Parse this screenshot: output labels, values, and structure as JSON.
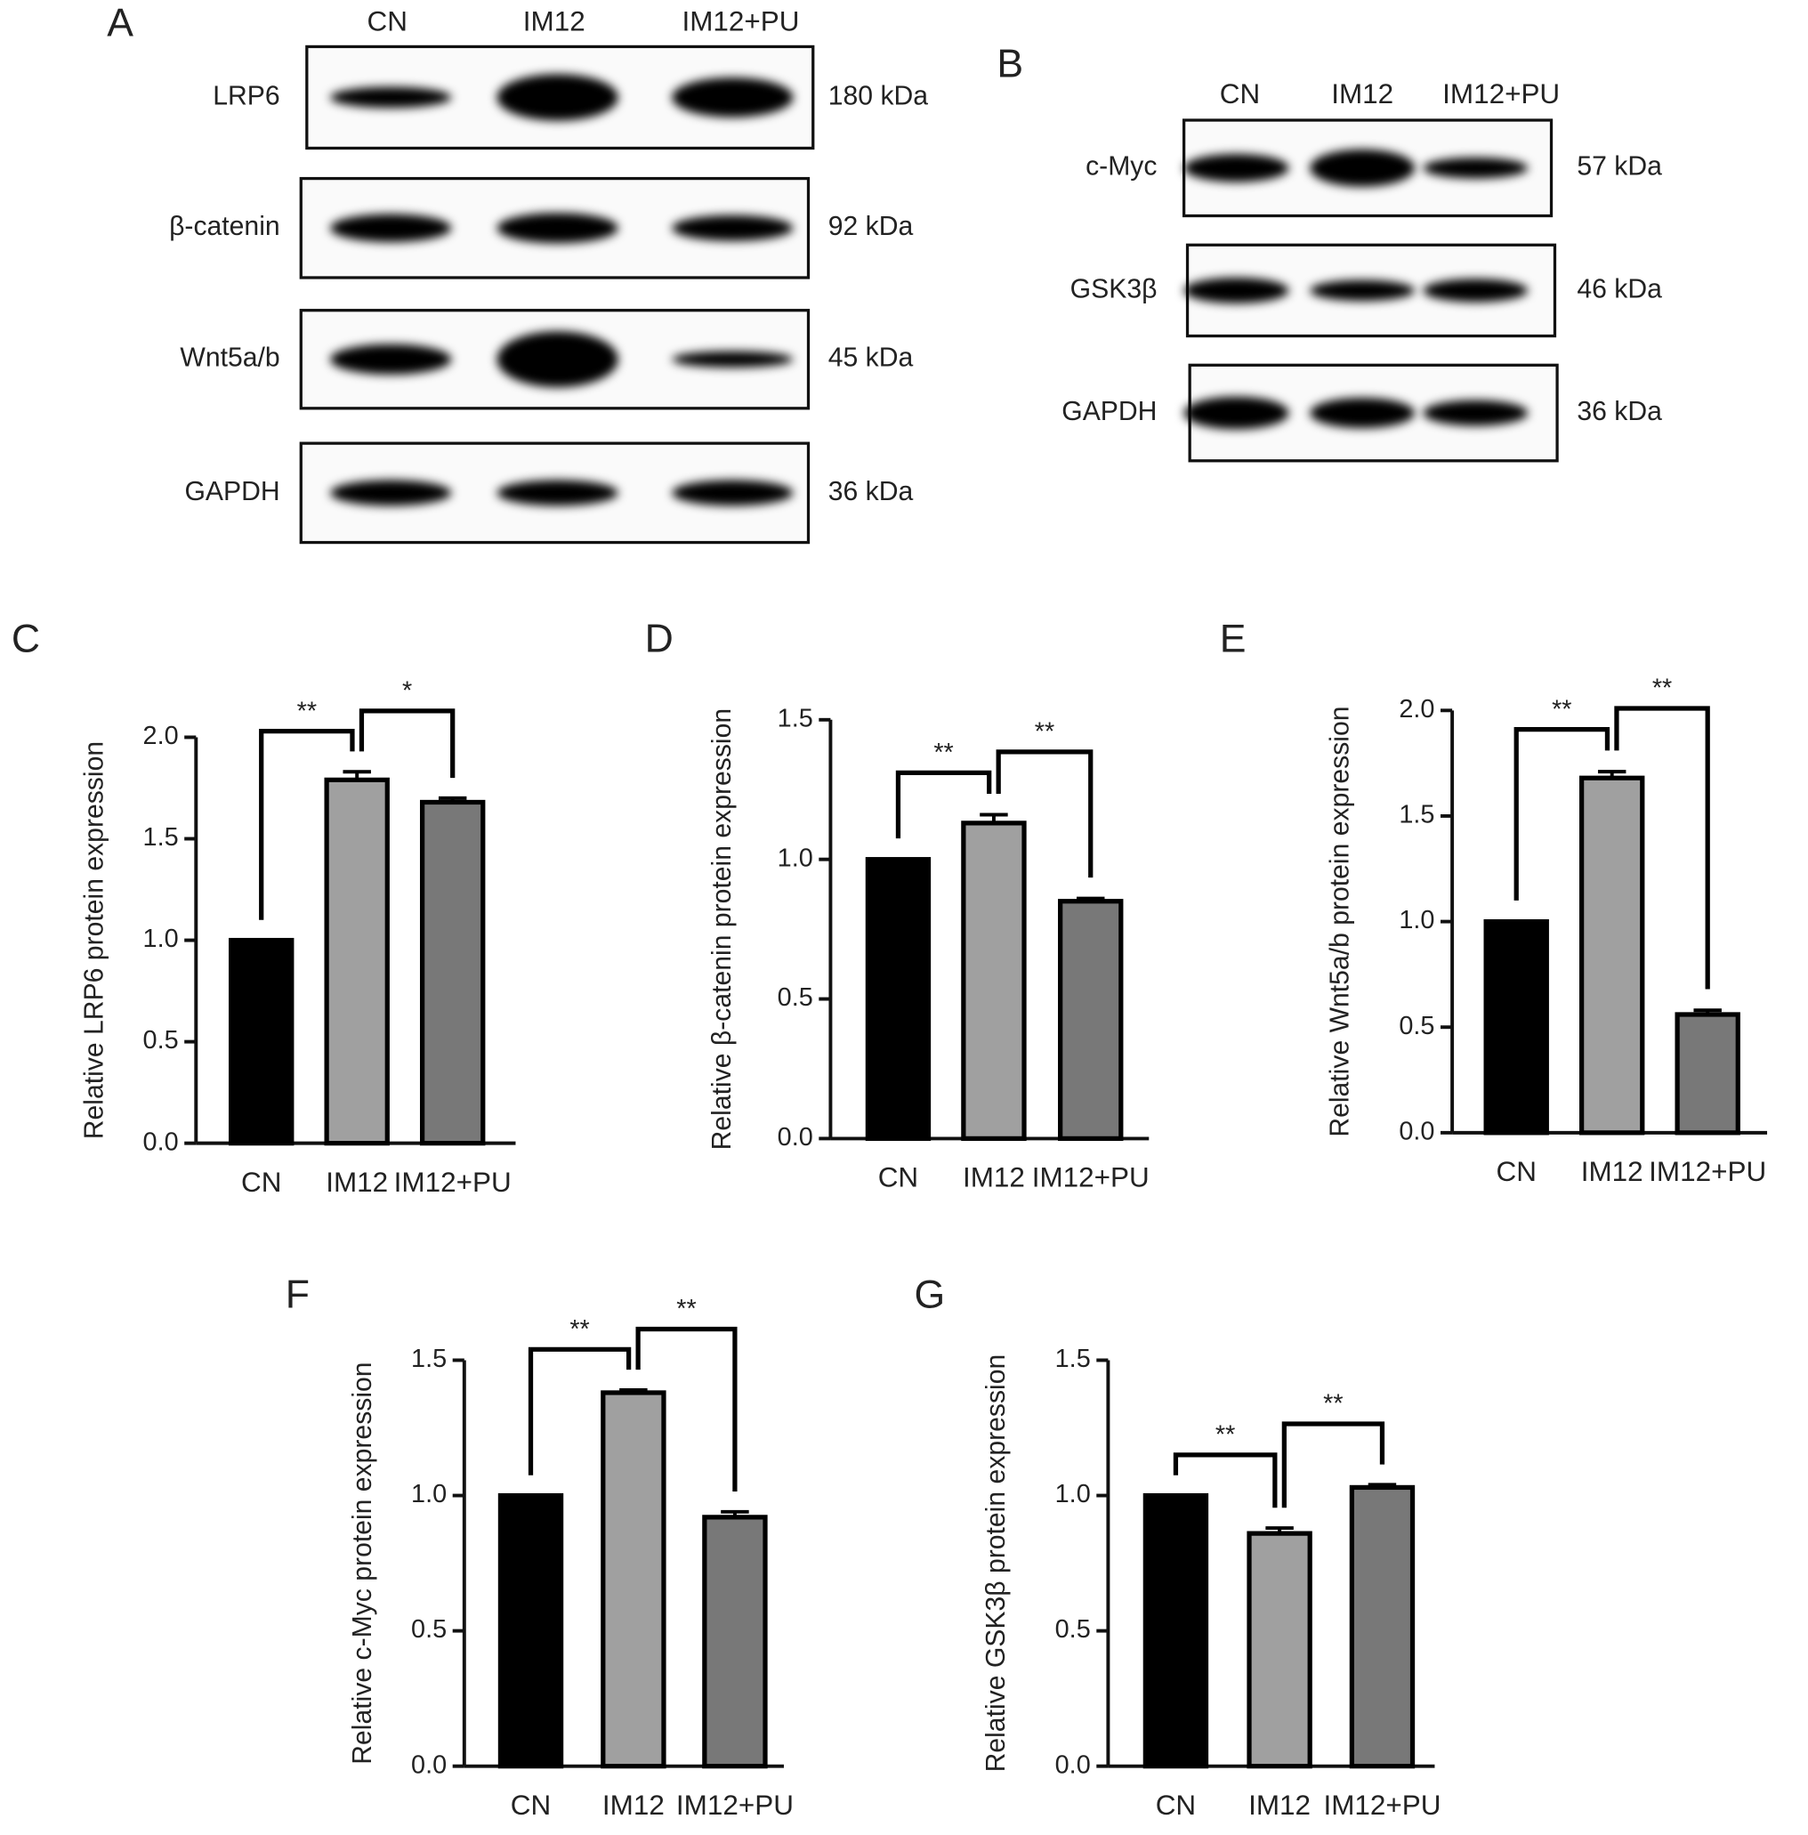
{
  "blots": [
    {
      "panel": "A",
      "lanes": [
        "CN",
        "IM12",
        "IM12+PU"
      ],
      "rows": [
        {
          "label": "LRP6",
          "size": "180 kDa"
        },
        {
          "label": "β-catenin",
          "size": "92 kDa"
        },
        {
          "label": "Wnt5a/b",
          "size": "45 kDa"
        },
        {
          "label": "GAPDH",
          "size": "36 kDa"
        }
      ]
    },
    {
      "panel": "B",
      "lanes": [
        "CN",
        "IM12",
        "IM12+PU"
      ],
      "rows": [
        {
          "label": "c-Myc",
          "size": "57 kDa"
        },
        {
          "label": "GSK3β",
          "size": "46 kDa"
        },
        {
          "label": "GAPDH",
          "size": "36 kDa"
        }
      ]
    }
  ],
  "chart_data": [
    {
      "type": "bar",
      "panel": "C",
      "y_label": "Relative LRP6 protein expression",
      "categories": [
        "CN",
        "IM12",
        "IM12+PU"
      ],
      "values": [
        1.0,
        1.79,
        1.68
      ],
      "errors": [
        0,
        0.04,
        0.02
      ],
      "colors": [
        "#000000",
        "#a0a0a0",
        "#787878"
      ],
      "ylim": [
        0,
        2
      ],
      "yticks": [
        {
          "value": 0,
          "label": "0.0"
        },
        {
          "value": 0.5,
          "label": "0.5"
        },
        {
          "value": 1,
          "label": "1.0"
        },
        {
          "value": 1.5,
          "label": "1.5"
        },
        {
          "value": 2,
          "label": "2.0"
        }
      ],
      "annotations": [
        {
          "text": "**",
          "pair": [
            "CN",
            "IM12"
          ]
        },
        {
          "text": "*",
          "pair": [
            "IM12",
            "IM12+PU"
          ]
        }
      ]
    },
    {
      "type": "bar",
      "panel": "D",
      "y_label": "Relative β-catenin protein expression",
      "categories": [
        "CN",
        "IM12",
        "IM12+PU"
      ],
      "values": [
        1.0,
        1.13,
        0.85
      ],
      "errors": [
        0,
        0.03,
        0.01
      ],
      "colors": [
        "#000000",
        "#a0a0a0",
        "#787878"
      ],
      "ylim": [
        0,
        1.5
      ],
      "yticks": [
        {
          "value": 0,
          "label": "0.0"
        },
        {
          "value": 0.5,
          "label": "0.5"
        },
        {
          "value": 1,
          "label": "1.0"
        },
        1.5
      ],
      "annotations": [
        {
          "text": "**",
          "pair": [
            "CN",
            "IM12"
          ]
        },
        {
          "text": "**",
          "pair": [
            "IM12",
            "IM12+PU"
          ]
        }
      ]
    },
    {
      "type": "bar",
      "panel": "E",
      "y_label": "Relative Wnt5a/b protein expression",
      "categories": [
        "CN",
        "IM12",
        "IM12+PU"
      ],
      "values": [
        1.0,
        1.68,
        0.56
      ],
      "errors": [
        0,
        0.03,
        0.02
      ],
      "colors": [
        "#000000",
        "#a0a0a0",
        "#787878"
      ],
      "ylim": [
        0,
        2
      ],
      "yticks": [
        {
          "value": 0,
          "label": "0.0"
        },
        {
          "value": 0.5,
          "label": "0.5"
        },
        {
          "value": 1,
          "label": "1.0"
        },
        1.5,
        {
          "value": 2,
          "label": "2.0"
        }
      ],
      "annotations": [
        {
          "text": "**",
          "pair": [
            "CN",
            "IM12"
          ]
        },
        {
          "text": "**",
          "pair": [
            "IM12",
            "IM12+PU"
          ]
        }
      ]
    },
    {
      "type": "bar",
      "panel": "F",
      "y_label": "Relative c-Myc protein expression",
      "categories": [
        "CN",
        "IM12",
        "IM12+PU"
      ],
      "values": [
        1.0,
        1.38,
        0.92
      ],
      "errors": [
        0,
        0.01,
        0.02
      ],
      "colors": [
        "#000000",
        "#a0a0a0",
        "#787878"
      ],
      "ylim": [
        0,
        1.5
      ],
      "yticks": [
        {
          "value": 0,
          "label": "0.0"
        },
        {
          "value": 0.5,
          "label": "0.5"
        },
        {
          "value": 1,
          "label": "1.0"
        },
        1.5
      ],
      "annotations": [
        {
          "text": "**",
          "pair": [
            "CN",
            "IM12"
          ]
        },
        {
          "text": "**",
          "pair": [
            "IM12",
            "IM12+PU"
          ]
        }
      ]
    },
    {
      "type": "bar",
      "panel": "G",
      "y_label": "Relative GSK3β protein expression",
      "categories": [
        "CN",
        "IM12",
        "IM12+PU"
      ],
      "values": [
        1.0,
        0.86,
        1.03
      ],
      "errors": [
        0,
        0.02,
        0.01
      ],
      "colors": [
        "#000000",
        "#a0a0a0",
        "#787878"
      ],
      "ylim": [
        0,
        1.5
      ],
      "yticks": [
        {
          "value": 0,
          "label": "0.0"
        },
        {
          "value": 0.5,
          "label": "0.5"
        },
        {
          "value": 1,
          "label": "1.0"
        },
        1.5
      ],
      "annotations": [
        {
          "text": "**",
          "pair": [
            "CN",
            "IM12"
          ]
        },
        {
          "text": "**",
          "pair": [
            "IM12",
            "IM12+PU"
          ]
        }
      ]
    }
  ]
}
